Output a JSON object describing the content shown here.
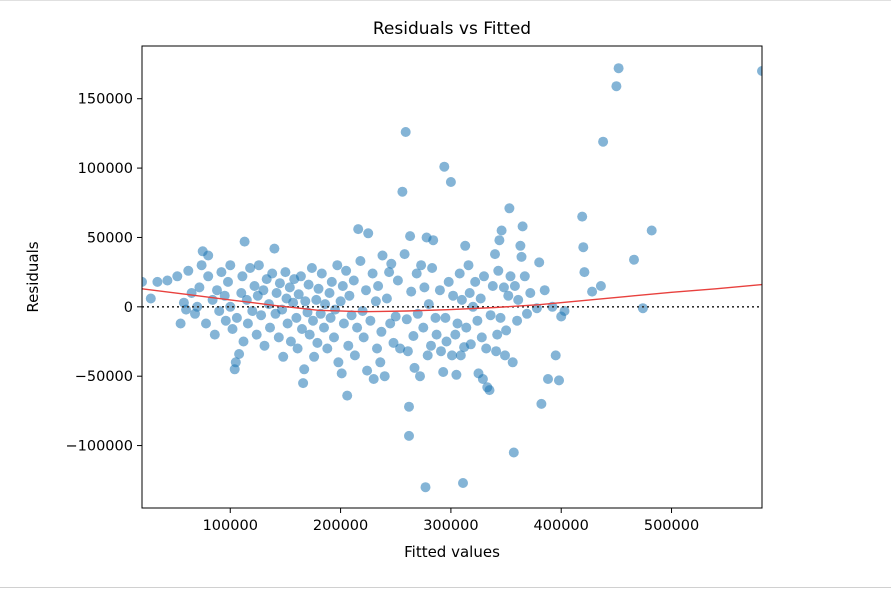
{
  "chart_data": {
    "type": "scatter",
    "title": "Residuals vs Fitted",
    "xlabel": "Fitted values",
    "ylabel": "Residuals",
    "xlim": [
      20000,
      582000
    ],
    "ylim": [
      -145000,
      188000
    ],
    "xticks": [
      100000,
      200000,
      300000,
      400000,
      500000
    ],
    "xtick_labels": [
      "100000",
      "200000",
      "300000",
      "400000",
      "500000"
    ],
    "yticks": [
      -100000,
      -50000,
      0,
      50000,
      100000,
      150000
    ],
    "ytick_labels": [
      "−100000",
      "−50000",
      "0",
      "50000",
      "100000",
      "150000"
    ],
    "grid": false,
    "point_color": "#1f77b4",
    "point_alpha": 0.55,
    "zero_line": {
      "y": 0,
      "style": "dotted",
      "color": "#333333"
    },
    "trend_line": {
      "color": "#e8413e",
      "points": [
        [
          20000,
          13000
        ],
        [
          60000,
          9000
        ],
        [
          100000,
          5000
        ],
        [
          140000,
          1000
        ],
        [
          180000,
          -2500
        ],
        [
          220000,
          -3500
        ],
        [
          260000,
          -3000
        ],
        [
          300000,
          -2000
        ],
        [
          340000,
          -500
        ],
        [
          380000,
          1500
        ],
        [
          420000,
          4500
        ],
        [
          460000,
          7500
        ],
        [
          500000,
          10500
        ],
        [
          540000,
          13000
        ],
        [
          582000,
          16000
        ]
      ]
    },
    "points": [
      [
        20000,
        18000
      ],
      [
        28000,
        6000
      ],
      [
        34000,
        18000
      ],
      [
        43000,
        19000
      ],
      [
        52000,
        22000
      ],
      [
        55000,
        -12000
      ],
      [
        58000,
        3000
      ],
      [
        60000,
        -2000
      ],
      [
        62000,
        26000
      ],
      [
        65000,
        10000
      ],
      [
        68000,
        -5000
      ],
      [
        70000,
        0
      ],
      [
        72000,
        14000
      ],
      [
        74000,
        30000
      ],
      [
        75000,
        40000
      ],
      [
        78000,
        -12000
      ],
      [
        80000,
        22000
      ],
      [
        80000,
        37000
      ],
      [
        84000,
        5000
      ],
      [
        86000,
        -20000
      ],
      [
        88000,
        12000
      ],
      [
        90000,
        -3000
      ],
      [
        92000,
        25000
      ],
      [
        95000,
        8000
      ],
      [
        96000,
        -10000
      ],
      [
        98000,
        18000
      ],
      [
        100000,
        0
      ],
      [
        100000,
        30000
      ],
      [
        102000,
        -16000
      ],
      [
        104000,
        -45000
      ],
      [
        105000,
        -40000
      ],
      [
        106000,
        -8000
      ],
      [
        108000,
        -34000
      ],
      [
        110000,
        10000
      ],
      [
        111000,
        22000
      ],
      [
        112000,
        -25000
      ],
      [
        113000,
        47000
      ],
      [
        115000,
        5000
      ],
      [
        116000,
        -12000
      ],
      [
        118000,
        28000
      ],
      [
        120000,
        -3000
      ],
      [
        122000,
        15000
      ],
      [
        124000,
        -20000
      ],
      [
        125000,
        8000
      ],
      [
        126000,
        30000
      ],
      [
        128000,
        -6000
      ],
      [
        130000,
        12000
      ],
      [
        131000,
        -28000
      ],
      [
        133000,
        20000
      ],
      [
        135000,
        2000
      ],
      [
        136000,
        -15000
      ],
      [
        138000,
        24000
      ],
      [
        140000,
        42000
      ],
      [
        141000,
        -5000
      ],
      [
        142000,
        10000
      ],
      [
        144000,
        -22000
      ],
      [
        145000,
        17000
      ],
      [
        147000,
        -2000
      ],
      [
        148000,
        -36000
      ],
      [
        150000,
        25000
      ],
      [
        151000,
        6000
      ],
      [
        152000,
        -12000
      ],
      [
        154000,
        14000
      ],
      [
        155000,
        -25000
      ],
      [
        157000,
        3000
      ],
      [
        158000,
        20000
      ],
      [
        160000,
        -8000
      ],
      [
        161000,
        -30000
      ],
      [
        162000,
        9000
      ],
      [
        164000,
        22000
      ],
      [
        165000,
        -16000
      ],
      [
        166000,
        -55000
      ],
      [
        167000,
        -45000
      ],
      [
        168000,
        4000
      ],
      [
        170000,
        -4000
      ],
      [
        171000,
        16000
      ],
      [
        172000,
        -20000
      ],
      [
        174000,
        28000
      ],
      [
        175000,
        -10000
      ],
      [
        176000,
        -36000
      ],
      [
        178000,
        5000
      ],
      [
        179000,
        -26000
      ],
      [
        180000,
        13000
      ],
      [
        182000,
        -5000
      ],
      [
        183000,
        24000
      ],
      [
        185000,
        -15000
      ],
      [
        186000,
        2000
      ],
      [
        188000,
        -30000
      ],
      [
        190000,
        10000
      ],
      [
        191000,
        -8000
      ],
      [
        192000,
        18000
      ],
      [
        194000,
        -22000
      ],
      [
        195000,
        -2000
      ],
      [
        197000,
        30000
      ],
      [
        198000,
        -40000
      ],
      [
        200000,
        4000
      ],
      [
        201000,
        -48000
      ],
      [
        202000,
        15000
      ],
      [
        203000,
        -12000
      ],
      [
        205000,
        26000
      ],
      [
        206000,
        -64000
      ],
      [
        207000,
        -28000
      ],
      [
        208000,
        8000
      ],
      [
        210000,
        -6000
      ],
      [
        212000,
        19000
      ],
      [
        213000,
        -35000
      ],
      [
        215000,
        -15000
      ],
      [
        216000,
        56000
      ],
      [
        218000,
        33000
      ],
      [
        220000,
        -3000
      ],
      [
        221000,
        -22000
      ],
      [
        223000,
        12000
      ],
      [
        224000,
        -46000
      ],
      [
        225000,
        53000
      ],
      [
        227000,
        -10000
      ],
      [
        229000,
        24000
      ],
      [
        230000,
        -52000
      ],
      [
        232000,
        4000
      ],
      [
        233000,
        -30000
      ],
      [
        234000,
        15000
      ],
      [
        236000,
        -40000
      ],
      [
        237000,
        -18000
      ],
      [
        238000,
        37000
      ],
      [
        240000,
        -50000
      ],
      [
        242000,
        6000
      ],
      [
        244000,
        25000
      ],
      [
        245000,
        -12000
      ],
      [
        246000,
        31000
      ],
      [
        248000,
        -26000
      ],
      [
        250000,
        -7000
      ],
      [
        252000,
        19000
      ],
      [
        254000,
        -30000
      ],
      [
        256000,
        83000
      ],
      [
        258000,
        38000
      ],
      [
        259000,
        126000
      ],
      [
        260000,
        -9000
      ],
      [
        261000,
        -32000
      ],
      [
        262000,
        -93000
      ],
      [
        262000,
        -72000
      ],
      [
        263000,
        51000
      ],
      [
        264000,
        11000
      ],
      [
        266000,
        -21000
      ],
      [
        267000,
        -44000
      ],
      [
        269000,
        24000
      ],
      [
        270000,
        -5000
      ],
      [
        272000,
        -50000
      ],
      [
        273000,
        30000
      ],
      [
        275000,
        -15000
      ],
      [
        276000,
        14000
      ],
      [
        277000,
        -130000
      ],
      [
        278000,
        50000
      ],
      [
        279000,
        -35000
      ],
      [
        280000,
        2000
      ],
      [
        282000,
        -28000
      ],
      [
        283000,
        28000
      ],
      [
        284000,
        48000
      ],
      [
        286000,
        -8000
      ],
      [
        287000,
        -20000
      ],
      [
        290000,
        12000
      ],
      [
        291000,
        -32000
      ],
      [
        293000,
        -47000
      ],
      [
        294000,
        101000
      ],
      [
        295000,
        -8000
      ],
      [
        296000,
        -25000
      ],
      [
        298000,
        18000
      ],
      [
        300000,
        90000
      ],
      [
        301000,
        -35000
      ],
      [
        302000,
        8000
      ],
      [
        304000,
        -20000
      ],
      [
        305000,
        -49000
      ],
      [
        306000,
        -12000
      ],
      [
        308000,
        24000
      ],
      [
        309000,
        -35000
      ],
      [
        310000,
        5000
      ],
      [
        311000,
        -127000
      ],
      [
        312000,
        -29000
      ],
      [
        313000,
        44000
      ],
      [
        314000,
        -15000
      ],
      [
        316000,
        30000
      ],
      [
        317000,
        10000
      ],
      [
        318000,
        -27000
      ],
      [
        320000,
        0
      ],
      [
        322000,
        18000
      ],
      [
        324000,
        -10000
      ],
      [
        325000,
        -48000
      ],
      [
        327000,
        6000
      ],
      [
        328000,
        -22000
      ],
      [
        329000,
        -52000
      ],
      [
        330000,
        22000
      ],
      [
        332000,
        -30000
      ],
      [
        333000,
        -58000
      ],
      [
        335000,
        -60000
      ],
      [
        336000,
        -6000
      ],
      [
        338000,
        15000
      ],
      [
        340000,
        38000
      ],
      [
        341000,
        -32000
      ],
      [
        342000,
        -20000
      ],
      [
        343000,
        26000
      ],
      [
        344000,
        48000
      ],
      [
        345000,
        -8000
      ],
      [
        346000,
        55000
      ],
      [
        348000,
        14000
      ],
      [
        349000,
        -35000
      ],
      [
        350000,
        -17000
      ],
      [
        352000,
        8000
      ],
      [
        353000,
        71000
      ],
      [
        354000,
        22000
      ],
      [
        356000,
        -40000
      ],
      [
        357000,
        -105000
      ],
      [
        358000,
        15000
      ],
      [
        360000,
        -10000
      ],
      [
        361000,
        5000
      ],
      [
        363000,
        44000
      ],
      [
        364000,
        36000
      ],
      [
        365000,
        58000
      ],
      [
        367000,
        22000
      ],
      [
        369000,
        -5000
      ],
      [
        372000,
        10000
      ],
      [
        378000,
        -1000
      ],
      [
        380000,
        32000
      ],
      [
        382000,
        -70000
      ],
      [
        385000,
        12000
      ],
      [
        388000,
        -52000
      ],
      [
        392000,
        0
      ],
      [
        395000,
        -35000
      ],
      [
        398000,
        -53000
      ],
      [
        400000,
        -7000
      ],
      [
        403000,
        -3000
      ],
      [
        419000,
        65000
      ],
      [
        420000,
        43000
      ],
      [
        421000,
        25000
      ],
      [
        428000,
        11000
      ],
      [
        436000,
        15000
      ],
      [
        438000,
        119000
      ],
      [
        450000,
        159000
      ],
      [
        452000,
        172000
      ],
      [
        466000,
        34000
      ],
      [
        474000,
        -1000
      ],
      [
        482000,
        55000
      ],
      [
        582000,
        170000
      ]
    ]
  }
}
